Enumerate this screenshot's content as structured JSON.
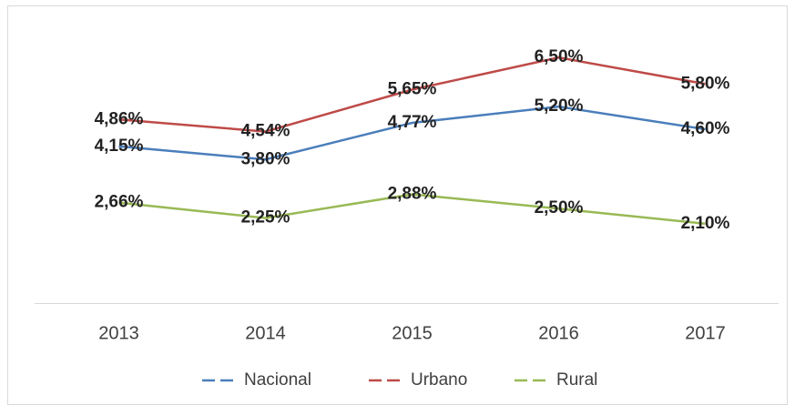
{
  "chart_data": {
    "type": "line",
    "categories": [
      "2013",
      "2014",
      "2015",
      "2016",
      "2017"
    ],
    "series": [
      {
        "name": "Nacional",
        "color": "#4a7ebb",
        "values": [
          4.15,
          3.8,
          4.77,
          5.2,
          4.6
        ],
        "value_labels": [
          "4,15%",
          "3,80%",
          "4,77%",
          "5,20%",
          "4,60%"
        ]
      },
      {
        "name": "Urbano",
        "color": "#be4b48",
        "values": [
          4.86,
          4.54,
          5.65,
          6.5,
          5.8
        ],
        "value_labels": [
          "4,86%",
          "4,54%",
          "5,65%",
          "6,50%",
          "5,80%"
        ]
      },
      {
        "name": "Rural",
        "color": "#98b954",
        "values": [
          2.66,
          2.25,
          2.88,
          2.5,
          2.1
        ],
        "value_labels": [
          "2,66%",
          "2,25%",
          "2,88%",
          "2,50%",
          "2,10%"
        ]
      }
    ],
    "ylim": [
      0,
      7.3
    ],
    "legend": "bottom"
  }
}
